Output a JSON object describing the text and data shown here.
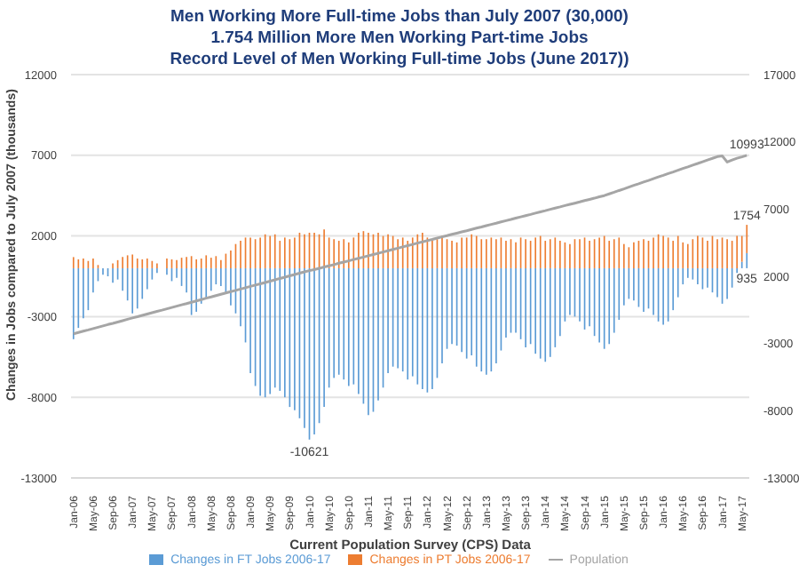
{
  "chart_data": {
    "type": "bar",
    "stacked": true,
    "title": "Men Working More Full-time Jobs than July 2007 (30,000)\n1.754 Million More Men Working Part-time Jobs\nRecord Level of Men Working Full-time Jobs (June 2017))",
    "xlabel": "Current Population Survey (CPS) Data",
    "ylabel": "Changes in Jobs compared to July 2007 (thousands)",
    "categories": [
      "Jan-06",
      null,
      null,
      null,
      "May-06",
      null,
      null,
      null,
      "Sep-06",
      null,
      null,
      null,
      "Jan-07",
      null,
      null,
      null,
      "May-07",
      null,
      null,
      null,
      "Sep-07",
      null,
      null,
      null,
      "Jan-08",
      null,
      null,
      null,
      "May-08",
      null,
      null,
      null,
      "Sep-08",
      null,
      null,
      null,
      "Jan-09",
      null,
      null,
      null,
      "May-09",
      null,
      null,
      null,
      "Sep-09",
      null,
      null,
      null,
      "Jan-10",
      null,
      null,
      null,
      "May-10",
      null,
      null,
      null,
      "Sep-10",
      null,
      null,
      null,
      "Jan-11",
      null,
      null,
      null,
      "May-11",
      null,
      null,
      null,
      "Sep-11",
      null,
      null,
      null,
      "Jan-12",
      null,
      null,
      null,
      "May-12",
      null,
      null,
      null,
      "Sep-12",
      null,
      null,
      null,
      "Jan-13",
      null,
      null,
      null,
      "May-13",
      null,
      null,
      null,
      "Sep-13",
      null,
      null,
      null,
      "Jan-14",
      null,
      null,
      null,
      "May-14",
      null,
      null,
      null,
      "Sep-14",
      null,
      null,
      null,
      "Jan-15",
      null,
      null,
      null,
      "May-15",
      null,
      null,
      null,
      "Sep-15",
      null,
      null,
      null,
      "Jan-16",
      null,
      null,
      null,
      "May-16",
      null,
      null,
      null,
      "Sep-16",
      null,
      null,
      null,
      "Jan-17",
      null,
      null,
      null,
      "May-17",
      null
    ],
    "series": [
      {
        "name": "Changes in FT Jobs 2006-17",
        "type": "bar",
        "color": "#5b9bd5",
        "values": [
          -4400,
          -3700,
          -3100,
          -2600,
          -1500,
          -800,
          -400,
          -500,
          -900,
          -700,
          -1400,
          -2000,
          -2800,
          -2500,
          -1900,
          -1300,
          -700,
          -300,
          0,
          -400,
          -800,
          -600,
          -1100,
          -1500,
          -2900,
          -2700,
          -2200,
          -1900,
          -1400,
          -1000,
          -1100,
          -1500,
          -2300,
          -2800,
          -3600,
          -4600,
          -6500,
          -7300,
          -7900,
          -8000,
          -7800,
          -7400,
          -7600,
          -8000,
          -8600,
          -8800,
          -9300,
          -9900,
          -10621,
          -10300,
          -9600,
          -8600,
          -7400,
          -6800,
          -6600,
          -6900,
          -7300,
          -7200,
          -7800,
          -8400,
          -9100,
          -8900,
          -8200,
          -7400,
          -6500,
          -6100,
          -6200,
          -6400,
          -6900,
          -6700,
          -7200,
          -7500,
          -7700,
          -7500,
          -6800,
          -5900,
          -5000,
          -4700,
          -4800,
          -5200,
          -5600,
          -5400,
          -6100,
          -6400,
          -6600,
          -6400,
          -5900,
          -5100,
          -4300,
          -4000,
          -4000,
          -4400,
          -4900,
          -4700,
          -5300,
          -5600,
          -5800,
          -5500,
          -4900,
          -4200,
          -3300,
          -2900,
          -3000,
          -3300,
          -3800,
          -3600,
          -4200,
          -4600,
          -5000,
          -4700,
          -4000,
          -3200,
          -2300,
          -1900,
          -2000,
          -2400,
          -2700,
          -2500,
          -2900,
          -3300,
          -3500,
          -3300,
          -2600,
          -1800,
          -1000,
          -600,
          -700,
          -1000,
          -1300,
          -1200,
          -1500,
          -1800,
          -2200,
          -1900,
          -1200,
          -300,
          400,
          935
        ],
        "value_labels": [
          null,
          null,
          null,
          null,
          null,
          null,
          null,
          null,
          null,
          null,
          null,
          null,
          null,
          null,
          null,
          null,
          null,
          null,
          null,
          null,
          null,
          null,
          null,
          null,
          null,
          null,
          null,
          null,
          null,
          null,
          null,
          null,
          null,
          null,
          null,
          null,
          null,
          null,
          null,
          null,
          null,
          null,
          null,
          null,
          null,
          null,
          null,
          null,
          "-10621",
          null,
          null,
          null,
          null,
          null,
          null,
          null,
          null,
          null,
          null,
          null,
          null,
          null,
          null,
          null,
          null,
          null,
          null,
          null,
          null,
          null,
          null,
          null,
          null,
          null,
          null,
          null,
          null,
          null,
          null,
          null,
          null,
          null,
          null,
          null,
          null,
          null,
          null,
          null,
          null,
          null,
          null,
          null,
          null,
          null,
          null,
          null,
          null,
          null,
          null,
          null,
          null,
          null,
          null,
          null,
          null,
          null,
          null,
          null,
          null,
          null,
          null,
          null,
          null,
          null,
          null,
          null,
          null,
          null,
          null,
          null,
          null,
          null,
          null,
          null,
          null,
          null,
          null,
          null,
          null,
          null,
          null,
          null,
          null,
          null,
          null,
          null,
          null,
          "935"
        ]
      },
      {
        "name": "Changes in PT Jobs 2006-17",
        "type": "bar",
        "color": "#ed7d31",
        "values": [
          690,
          550,
          600,
          450,
          600,
          200,
          null,
          null,
          300,
          500,
          700,
          800,
          850,
          600,
          550,
          600,
          450,
          300,
          0,
          600,
          550,
          500,
          650,
          700,
          750,
          550,
          600,
          800,
          650,
          750,
          500,
          900,
          1100,
          1500,
          1700,
          1900,
          1900,
          1800,
          1900,
          2100,
          2000,
          2100,
          1700,
          1900,
          1800,
          1900,
          2200,
          2100,
          2200,
          2200,
          2100,
          2400,
          1900,
          1800,
          1700,
          1800,
          1600,
          1900,
          2200,
          2300,
          2200,
          2100,
          2200,
          2000,
          2100,
          2000,
          1800,
          1900,
          1700,
          1900,
          2100,
          2200,
          1900,
          1700,
          1800,
          2000,
          1800,
          1700,
          1600,
          1900,
          1900,
          2100,
          2000,
          1800,
          1800,
          1900,
          1800,
          1900,
          1700,
          1800,
          1600,
          1900,
          1800,
          1700,
          1900,
          2000,
          1700,
          1800,
          1900,
          1700,
          1600,
          1500,
          1800,
          1800,
          1900,
          1700,
          1800,
          1900,
          2000,
          1700,
          1800,
          1900,
          1500,
          1300,
          1600,
          1700,
          1800,
          1700,
          1900,
          2100,
          2000,
          1900,
          1700,
          2000,
          1600,
          1500,
          1800,
          2000,
          1900,
          1700,
          2000,
          1800,
          1900,
          1800,
          1700,
          2000,
          1600,
          1754
        ],
        "value_labels": [
          null,
          null,
          null,
          null,
          null,
          null,
          null,
          null,
          null,
          null,
          null,
          null,
          null,
          null,
          null,
          null,
          null,
          null,
          null,
          null,
          null,
          null,
          null,
          null,
          null,
          null,
          null,
          null,
          null,
          null,
          null,
          null,
          null,
          null,
          null,
          null,
          null,
          null,
          null,
          null,
          null,
          null,
          null,
          null,
          null,
          null,
          null,
          null,
          null,
          null,
          null,
          null,
          null,
          null,
          null,
          null,
          null,
          null,
          null,
          null,
          null,
          null,
          null,
          null,
          null,
          null,
          null,
          null,
          null,
          null,
          null,
          null,
          null,
          null,
          null,
          null,
          null,
          null,
          null,
          null,
          null,
          null,
          null,
          null,
          null,
          null,
          null,
          null,
          null,
          null,
          null,
          null,
          null,
          null,
          null,
          null,
          null,
          null,
          null,
          null,
          null,
          null,
          null,
          null,
          null,
          null,
          null,
          null,
          null,
          null,
          null,
          null,
          null,
          null,
          null,
          null,
          null,
          null,
          null,
          null,
          null,
          null,
          null,
          null,
          null,
          null,
          null,
          null,
          null,
          null,
          null,
          null,
          null,
          null,
          null,
          null,
          null,
          "1754"
        ]
      },
      {
        "name": "Population",
        "type": "line",
        "axis": "y2",
        "color": "#a5a5a5",
        "values": [
          -2280,
          -2180,
          -2080,
          -1990,
          -1890,
          -1790,
          -1690,
          -1590,
          -1500,
          -1400,
          -1300,
          -1200,
          -1100,
          -1010,
          -910,
          -810,
          -710,
          -610,
          -520,
          -420,
          -320,
          -220,
          -120,
          -30,
          70,
          170,
          270,
          370,
          460,
          560,
          660,
          760,
          860,
          950,
          1050,
          1150,
          1250,
          1350,
          1440,
          1540,
          1640,
          1740,
          1840,
          1930,
          2030,
          2130,
          2230,
          2330,
          2420,
          2500,
          2590,
          2690,
          2780,
          2870,
          2970,
          3060,
          3150,
          3250,
          3340,
          3430,
          3530,
          3620,
          3710,
          3810,
          3900,
          4000,
          4090,
          4190,
          4280,
          4370,
          4470,
          4560,
          4650,
          4740,
          4840,
          4930,
          5020,
          5120,
          5210,
          5300,
          5390,
          5490,
          5580,
          5670,
          5770,
          5860,
          5950,
          6050,
          6140,
          6230,
          6330,
          6420,
          6510,
          6600,
          6700,
          6790,
          6880,
          6980,
          7070,
          7160,
          7260,
          7350,
          7440,
          7530,
          7630,
          7720,
          7810,
          7910,
          8000,
          8130,
          8250,
          8380,
          8500,
          8630,
          8760,
          8880,
          9010,
          9130,
          9260,
          9390,
          9510,
          9640,
          9760,
          9890,
          10020,
          10140,
          10270,
          10390,
          10520,
          10650,
          10770,
          10900,
          10950,
          10500,
          10650,
          10780,
          10880,
          10993
        ],
        "value_labels": [
          null,
          null,
          null,
          null,
          null,
          null,
          null,
          null,
          null,
          null,
          null,
          null,
          null,
          null,
          null,
          null,
          null,
          null,
          null,
          null,
          null,
          null,
          null,
          null,
          null,
          null,
          null,
          null,
          null,
          null,
          null,
          null,
          null,
          null,
          null,
          null,
          null,
          null,
          null,
          null,
          null,
          null,
          null,
          null,
          null,
          null,
          null,
          null,
          null,
          null,
          null,
          null,
          null,
          null,
          null,
          null,
          null,
          null,
          null,
          null,
          null,
          null,
          null,
          null,
          null,
          null,
          null,
          null,
          null,
          null,
          null,
          null,
          null,
          null,
          null,
          null,
          null,
          null,
          null,
          null,
          null,
          null,
          null,
          null,
          null,
          null,
          null,
          null,
          null,
          null,
          null,
          null,
          null,
          null,
          null,
          null,
          null,
          null,
          null,
          null,
          null,
          null,
          null,
          null,
          null,
          null,
          null,
          null,
          null,
          null,
          null,
          null,
          null,
          null,
          null,
          null,
          null,
          null,
          null,
          null,
          null,
          null,
          null,
          null,
          null,
          null,
          null,
          null,
          null,
          null,
          null,
          null,
          null,
          null,
          null,
          null,
          null,
          "10993"
        ]
      }
    ],
    "ylim": [
      -13000,
      12000
    ],
    "yticks": [
      -13000,
      -8000,
      -3000,
      2000,
      7000,
      12000
    ],
    "y2lim": [
      -13000,
      17000
    ],
    "y2ticks": [
      -13000,
      -8000,
      -3000,
      2000,
      7000,
      12000,
      17000
    ],
    "grid": "y",
    "legend": "bottom"
  }
}
